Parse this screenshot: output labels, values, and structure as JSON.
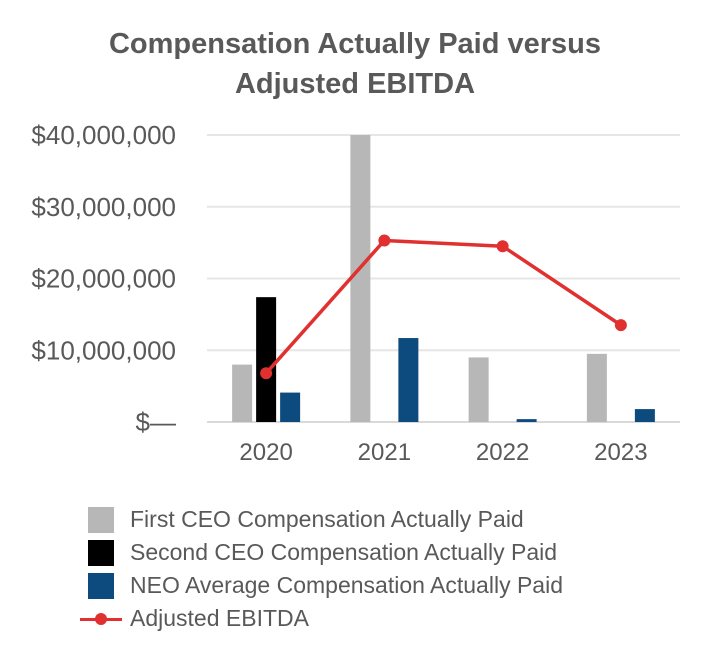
{
  "chart_data": {
    "type": "bar",
    "title": [
      "Compensation Actually Paid versus",
      "Adjusted EBITDA"
    ],
    "categories": [
      "2020",
      "2021",
      "2022",
      "2023"
    ],
    "ylim": [
      0,
      40000000
    ],
    "yticks": [
      {
        "value": 0,
        "label": "$—"
      },
      {
        "value": 10000000,
        "label": "$10,000,000"
      },
      {
        "value": 20000000,
        "label": "$20,000,000"
      },
      {
        "value": 30000000,
        "label": "$30,000,000"
      },
      {
        "value": 40000000,
        "label": "$40,000,000"
      }
    ],
    "grid": true,
    "legend_position": "bottom",
    "series": [
      {
        "name": "First CEO Compensation Actually Paid",
        "kind": "bar",
        "color": "#b7b7b7",
        "values": [
          8000000,
          40000000,
          9000000,
          9500000
        ]
      },
      {
        "name": "Second CEO Compensation Actually Paid",
        "kind": "bar",
        "color": "#000000",
        "values": [
          17400000,
          null,
          null,
          null
        ]
      },
      {
        "name": "NEO Average Compensation Actually Paid",
        "kind": "bar",
        "color": "#0d4a7e",
        "values": [
          4100000,
          11700000,
          400000,
          1800000
        ]
      },
      {
        "name": "Adjusted EBITDA",
        "kind": "line",
        "color": "#e03030",
        "values": [
          6800000,
          25300000,
          24500000,
          13500000
        ]
      }
    ]
  }
}
